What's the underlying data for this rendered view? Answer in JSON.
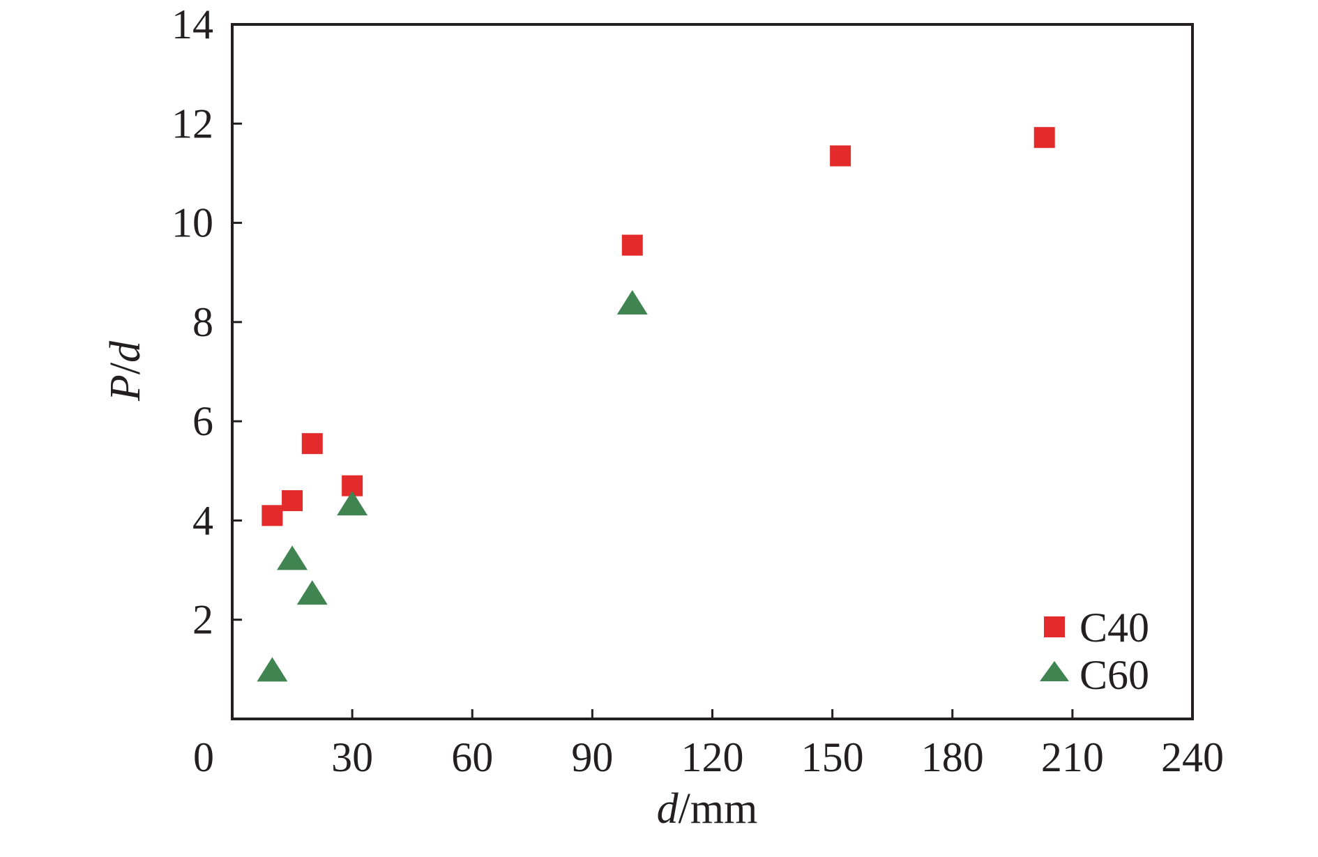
{
  "chart_data": {
    "type": "scatter",
    "title": "",
    "xlabel": {
      "italic": "d",
      "rest": "/mm"
    },
    "ylabel": {
      "italic_1": "P",
      "sep": "/",
      "italic_2": "d"
    },
    "xlim": [
      0,
      240
    ],
    "ylim": [
      0,
      14
    ],
    "x_ticks": [
      0,
      30,
      60,
      90,
      120,
      150,
      180,
      210,
      240
    ],
    "y_ticks": [
      2,
      4,
      6,
      8,
      10,
      12,
      14
    ],
    "grid": false,
    "legend_position": "bottom-right",
    "series": [
      {
        "name": "C40",
        "marker": "square",
        "color": "#e32b2b",
        "points": [
          {
            "x": 10,
            "y": 4.1
          },
          {
            "x": 15,
            "y": 4.4
          },
          {
            "x": 20,
            "y": 5.55
          },
          {
            "x": 30,
            "y": 4.7
          },
          {
            "x": 100,
            "y": 9.55
          },
          {
            "x": 152,
            "y": 11.35
          },
          {
            "x": 203,
            "y": 11.72
          }
        ]
      },
      {
        "name": "C60",
        "marker": "triangle",
        "color": "#3f8451",
        "points": [
          {
            "x": 10,
            "y": 0.95
          },
          {
            "x": 15,
            "y": 3.2
          },
          {
            "x": 20,
            "y": 2.5
          },
          {
            "x": 30,
            "y": 4.3
          },
          {
            "x": 100,
            "y": 8.35
          }
        ]
      }
    ]
  }
}
